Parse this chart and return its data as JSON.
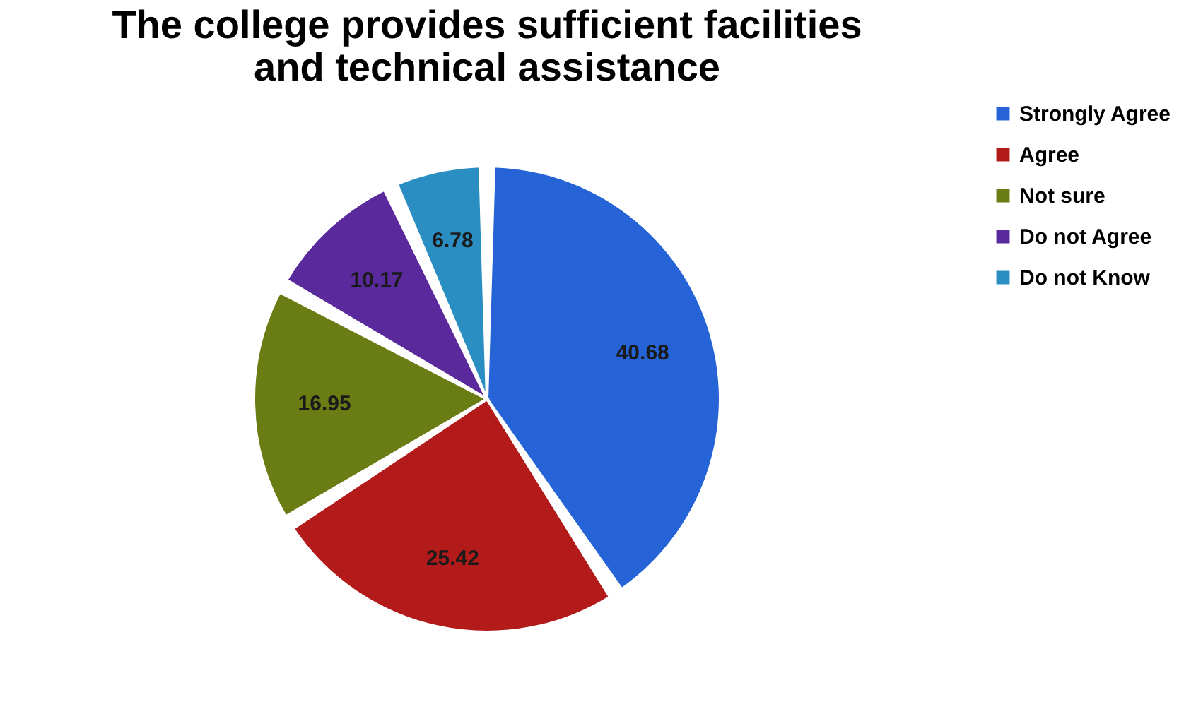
{
  "chart_data": {
    "type": "pie",
    "title": [
      "The college provides sufficient facilities",
      "and technical assistance"
    ],
    "categories": [
      "Strongly Agree",
      "Agree",
      "Not sure",
      "Do not Agree",
      "Do not Know"
    ],
    "values": [
      40.68,
      25.42,
      16.95,
      10.17,
      6.78
    ],
    "colors": [
      "#2563d6",
      "#b31b1b",
      "#6a7d14",
      "#5a2a9c",
      "#2a8ec2"
    ],
    "data_labels": true,
    "legend": "right"
  }
}
